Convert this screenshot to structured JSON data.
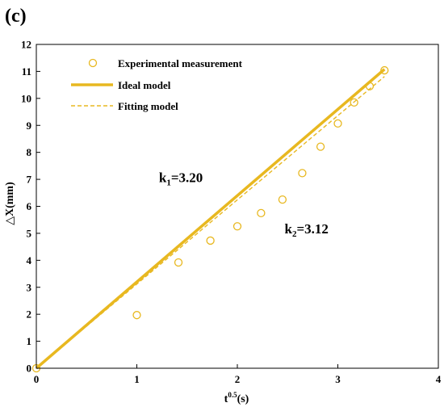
{
  "panel_label": "(c)",
  "colors": {
    "series": "#E8B820",
    "axis": "#000000",
    "background": "#ffffff"
  },
  "chart_data": {
    "type": "scatter",
    "xlabel": {
      "base": "t",
      "sup": "0.5",
      "unit": "(s)"
    },
    "ylabel": "△X(mm)",
    "xlim": [
      0,
      4
    ],
    "ylim": [
      0,
      12
    ],
    "xticks": [
      0,
      1,
      2,
      3,
      4
    ],
    "yticks": [
      0,
      1,
      2,
      3,
      4,
      5,
      6,
      7,
      8,
      9,
      10,
      11,
      12
    ],
    "grid": false,
    "legend_position": "top-left",
    "series": [
      {
        "name": "Experimental measurement",
        "style": "open-circle",
        "x": [
          0,
          1.0,
          1.414,
          1.732,
          2.0,
          2.236,
          2.449,
          2.646,
          2.828,
          3.0,
          3.162,
          3.317,
          3.464
        ],
        "y": [
          0,
          1.97,
          3.92,
          4.73,
          5.26,
          5.75,
          6.25,
          7.23,
          8.21,
          9.07,
          9.85,
          10.45,
          11.04
        ]
      },
      {
        "name": "Ideal model",
        "style": "solid-line",
        "x": [
          0,
          3.464
        ],
        "y": [
          0,
          11.08
        ]
      },
      {
        "name": "Fitting model",
        "style": "dashed-line",
        "x": [
          0,
          3.464
        ],
        "y": [
          0,
          10.81
        ]
      }
    ],
    "annotations": [
      {
        "base": "k",
        "sub": "1",
        "text": "=3.20",
        "x": 1.22,
        "y": 6.9
      },
      {
        "base": "k",
        "sub": "2",
        "text": "=3.12",
        "x": 2.47,
        "y": 5.0
      }
    ]
  }
}
